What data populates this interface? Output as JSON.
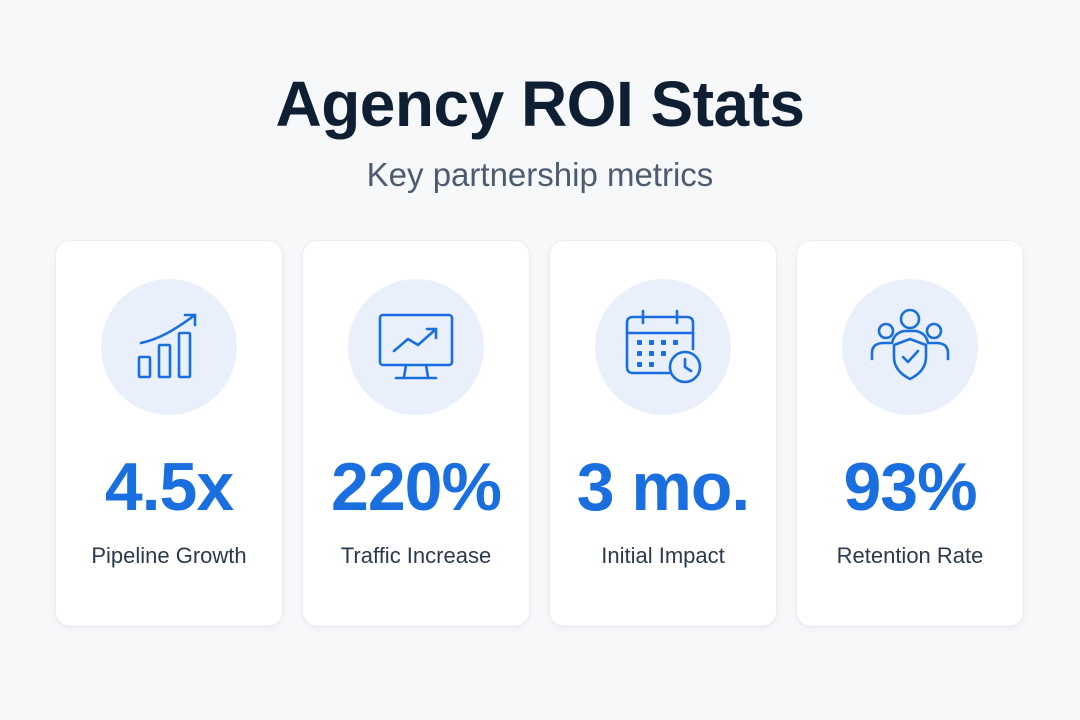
{
  "header": {
    "title": "Agency ROI Stats",
    "subtitle": "Key partnership metrics"
  },
  "accent_color": "#1a6fe0",
  "cards": [
    {
      "icon": "bar-chart-growth-icon",
      "value": "4.5x",
      "label": "Pipeline Growth"
    },
    {
      "icon": "monitor-trend-icon",
      "value": "220%",
      "label": "Traffic Increase"
    },
    {
      "icon": "calendar-clock-icon",
      "value": "3 mo.",
      "label": "Initial Impact"
    },
    {
      "icon": "team-shield-icon",
      "value": "93%",
      "label": "Retention Rate"
    }
  ]
}
